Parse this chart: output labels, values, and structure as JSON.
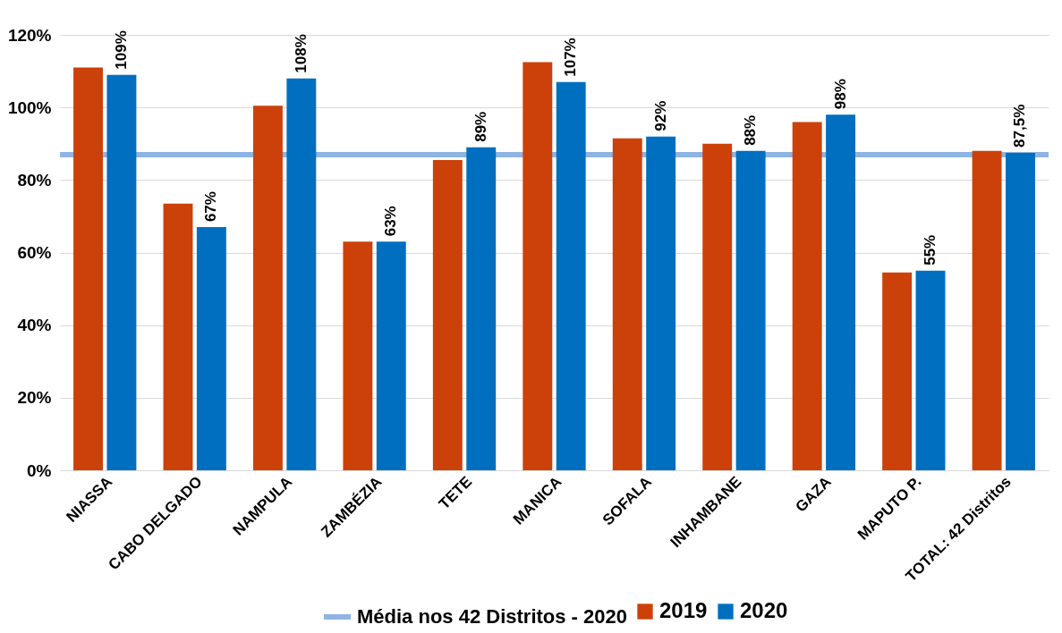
{
  "chart_data": {
    "type": "bar",
    "categories": [
      "NIASSA",
      "CABO DELGADO",
      "NAMPULA",
      "ZAMBÉZIA",
      "TETE",
      "MANICA",
      "SOFALA",
      "INHAMBANE",
      "GAZA",
      "MAPUTO P.",
      "TOTAL: 42 Distritos"
    ],
    "series": [
      {
        "name": "2019",
        "color": "#cc4109",
        "values": [
          111,
          73.5,
          100.5,
          63,
          85.5,
          112.5,
          91.5,
          90,
          96,
          54.5,
          88
        ]
      },
      {
        "name": "2020",
        "color": "#006fc0",
        "values": [
          109,
          67,
          108,
          63,
          89,
          107,
          92,
          88,
          98,
          55,
          87.5
        ],
        "value_labels": [
          "109%",
          "67%",
          "108%",
          "63%",
          "89%",
          "107%",
          "92%",
          "88%",
          "98%",
          "55%",
          "87,5%"
        ]
      }
    ],
    "ylim": [
      0,
      120
    ],
    "yticks": [
      {
        "value": 0,
        "label": "0%"
      },
      {
        "value": 20,
        "label": "20%"
      },
      {
        "value": 40,
        "label": "40%"
      },
      {
        "value": 60,
        "label": "60%"
      },
      {
        "value": 80,
        "label": "80%"
      },
      {
        "value": 100,
        "label": "100%"
      },
      {
        "value": 120,
        "label": "120%"
      }
    ],
    "grid": "y",
    "legend": "bottom",
    "ref_lines": [
      {
        "axis": "y",
        "value": 87,
        "label": "Média nos 42 Distritos - 2020",
        "color": "#8eb4e3"
      }
    ]
  }
}
